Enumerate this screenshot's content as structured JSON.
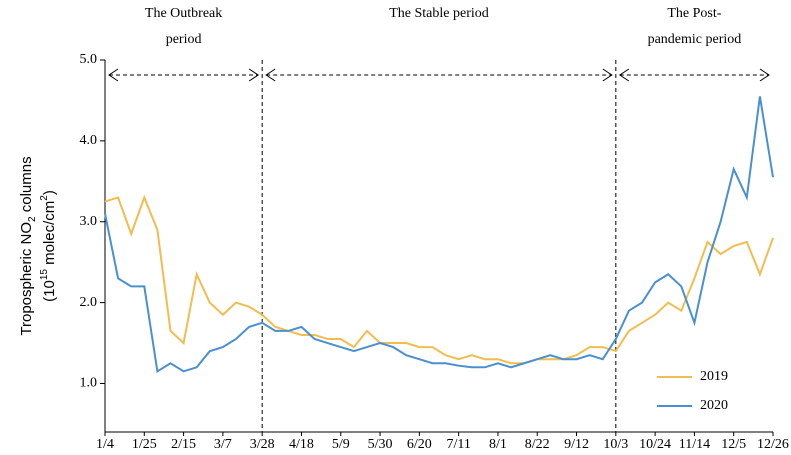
{
  "chart_data": {
    "type": "line",
    "x": [
      "1/4",
      null,
      null,
      "1/25",
      null,
      null,
      "2/15",
      null,
      null,
      "3/7",
      null,
      null,
      "3/28",
      null,
      null,
      "4/18",
      null,
      null,
      "5/9",
      null,
      null,
      "5/30",
      null,
      null,
      "6/20",
      null,
      null,
      "7/11",
      null,
      null,
      "8/1",
      null,
      null,
      "8/22",
      null,
      null,
      "9/12",
      null,
      null,
      "10/3",
      null,
      null,
      "10/24",
      null,
      null,
      "11/14",
      null,
      null,
      "12/5",
      null,
      null,
      "12/26"
    ],
    "series": [
      {
        "name": "2019",
        "color": "#f2bd4e",
        "values": [
          3.25,
          3.3,
          2.85,
          3.3,
          2.9,
          1.65,
          1.5,
          2.35,
          2.0,
          1.85,
          2.0,
          1.95,
          1.85,
          1.7,
          1.65,
          1.6,
          1.6,
          1.55,
          1.55,
          1.45,
          1.65,
          1.5,
          1.5,
          1.5,
          1.45,
          1.45,
          1.35,
          1.3,
          1.35,
          1.3,
          1.3,
          1.25,
          1.25,
          1.3,
          1.3,
          1.3,
          1.35,
          1.45,
          1.45,
          1.4,
          1.65,
          1.75,
          1.85,
          2.0,
          1.9,
          2.3,
          2.75,
          2.6,
          2.7,
          2.75,
          2.35,
          2.8
        ]
      },
      {
        "name": "2020",
        "color": "#4a90d0",
        "values": [
          3.1,
          2.3,
          2.2,
          2.2,
          1.15,
          1.25,
          1.15,
          1.2,
          1.4,
          1.45,
          1.55,
          1.7,
          1.75,
          1.65,
          1.65,
          1.7,
          1.55,
          1.5,
          1.45,
          1.4,
          1.45,
          1.5,
          1.45,
          1.35,
          1.3,
          1.25,
          1.25,
          1.22,
          1.2,
          1.2,
          1.25,
          1.2,
          1.25,
          1.3,
          1.35,
          1.3,
          1.3,
          1.35,
          1.3,
          1.55,
          1.9,
          2.0,
          2.25,
          2.35,
          2.2,
          1.75,
          2.5,
          3.0,
          3.65,
          3.3,
          4.55,
          3.55
        ]
      }
    ],
    "ylim": [
      0.4,
      5.0
    ],
    "yticks": [
      {
        "value": 1,
        "label": "1.0"
      },
      {
        "value": 2,
        "label": "2.0"
      },
      {
        "value": 3,
        "label": "3.0"
      },
      {
        "value": 4,
        "label": "4.0"
      },
      {
        "value": 5,
        "label": "5.0"
      }
    ],
    "y_label": {
      "line1": [
        "Tropospheric NO",
        "2",
        " columns"
      ],
      "line2": [
        "(10",
        "15",
        " molec/cm",
        "2",
        ")"
      ]
    },
    "periods": [
      {
        "lines": [
          "The Outbreak",
          "period"
        ],
        "start": "1/4",
        "end": "3/28"
      },
      {
        "lines": [
          "The Stable period"
        ],
        "start": "3/28",
        "end": "10/3"
      },
      {
        "lines": [
          "The Post-",
          "pandemic  period"
        ],
        "start": "10/3",
        "end": "12/26"
      }
    ],
    "legend": "lower right"
  }
}
